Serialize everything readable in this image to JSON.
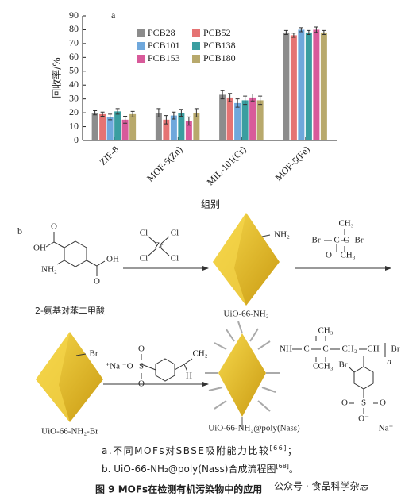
{
  "chart_data": {
    "type": "bar",
    "panel_label": "a",
    "ylabel": "回收率/%",
    "xlabel": "组别",
    "categories": [
      "ZIF-8",
      "MOF-5(Zn)",
      "MIL-101(Cr)",
      "MOF-5(Fe)"
    ],
    "series": [
      {
        "name": "PCB28",
        "color": "#8c8c8c",
        "values": [
          20,
          20,
          33,
          78
        ],
        "errors": [
          1.5,
          3,
          3,
          1.5
        ]
      },
      {
        "name": "PCB52",
        "color": "#e57373",
        "values": [
          19,
          15,
          31,
          76
        ],
        "errors": [
          1.5,
          3,
          3,
          1.5
        ]
      },
      {
        "name": "PCB101",
        "color": "#6fa8dc",
        "values": [
          17,
          18,
          27,
          80
        ],
        "errors": [
          2,
          2.5,
          3,
          1.5
        ]
      },
      {
        "name": "PCB138",
        "color": "#3a9ea0",
        "values": [
          21,
          20,
          29,
          78
        ],
        "errors": [
          2,
          2.5,
          3,
          1.5
        ]
      },
      {
        "name": "PCB153",
        "color": "#d85a9a",
        "values": [
          15,
          14,
          31,
          80
        ],
        "errors": [
          2.5,
          3,
          2.5,
          2
        ]
      },
      {
        "name": "PCB180",
        "color": "#b8a96c",
        "values": [
          19,
          20,
          29,
          78
        ],
        "errors": [
          2,
          3,
          3,
          1.5
        ]
      }
    ],
    "ylim": [
      0,
      90
    ],
    "yticks": [
      0,
      10,
      20,
      30,
      40,
      50,
      60,
      70,
      80,
      90
    ],
    "legend": "top-left"
  },
  "scheme": {
    "panel_label": "b",
    "names": [
      "2-氨基对苯二甲酸",
      "UiO-66-NH₂",
      "UiO-66-NH₂-Br",
      "UiO-66-NH₂@poly(Nass)"
    ],
    "labels": [
      "O",
      "OH",
      "NH₂",
      "OH",
      "O",
      "Cl",
      "Cl",
      "Zr",
      "Cl",
      "Cl",
      "NH₂",
      "CH₃",
      "Br",
      "C",
      "C",
      "Br",
      "O",
      "CH₃",
      "Br",
      "⁺Na ⁻O",
      "S",
      "O",
      "O",
      "CH₂",
      "H",
      "NH",
      "C",
      "C",
      "CH₂",
      "CH",
      "Br",
      "CH₃",
      "CH₃",
      "O",
      "n",
      "Br",
      "O",
      "S",
      "O",
      "O⁻",
      "Na⁺"
    ]
  },
  "caption": {
    "a_text": "a.不同MOFs对SBSE吸附能力比较",
    "a_ref": "[66]",
    "a_end": "；",
    "b_text": "b. UiO-66-NH₂@poly(Nass)合成流程图",
    "b_ref": "[68]",
    "b_end": "。",
    "figure": "图 9    MOFs在检测有机污染物中的应用",
    "watermark": "公众号 · 食品科学杂志"
  }
}
